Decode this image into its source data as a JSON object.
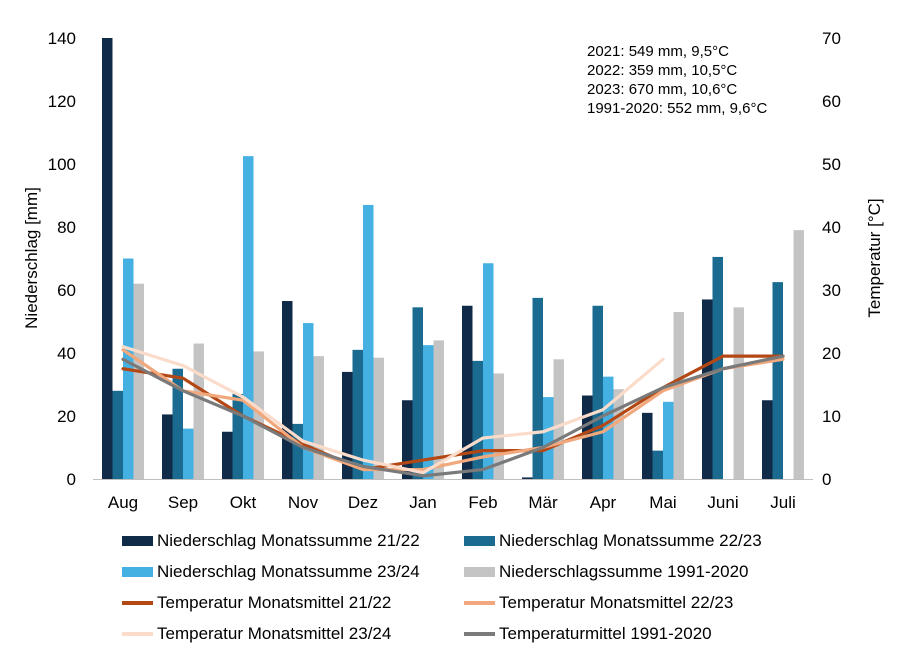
{
  "chart_data": {
    "type": "bar+line",
    "categories": [
      "Aug",
      "Sep",
      "Okt",
      "Nov",
      "Dez",
      "Jan",
      "Feb",
      "Mär",
      "Apr",
      "Mai",
      "Juni",
      "Juli"
    ],
    "ylabel": "Niederschlag [mm]",
    "y2label": "Temperatur [°C]",
    "ylim": [
      0,
      140
    ],
    "y2lim": [
      0,
      70
    ],
    "yticks": [
      "0",
      "20",
      "40",
      "60",
      "80",
      "100",
      "120",
      "140"
    ],
    "y2ticks": [
      "0",
      "10",
      "20",
      "30",
      "40",
      "50",
      "60",
      "70"
    ],
    "grid": false,
    "legend_position": "bottom",
    "annotations": [
      "2021: 549 mm, 9,5°C",
      "2022: 359 mm, 10,5°C",
      "2023: 670 mm, 10,6°C",
      "1991-2020: 552 mm, 9,6°C"
    ],
    "bar_series": [
      {
        "name": "Niederschlag Monatssumme 21/22",
        "color": "#0f2b48",
        "values": [
          140,
          20.5,
          15,
          56.5,
          34,
          25,
          55,
          0.5,
          26.5,
          21,
          57,
          25
        ]
      },
      {
        "name": "Niederschlag Monatssumme 22/23",
        "color": "#1b6a90",
        "values": [
          28,
          35,
          27,
          17.5,
          41,
          54.5,
          37.5,
          57.5,
          55,
          9,
          70.5,
          62.5
        ]
      },
      {
        "name": "Niederschlag Monatssumme 23/24",
        "color": "#45b1e2",
        "values": [
          70,
          16,
          102.5,
          49.5,
          87,
          42.5,
          68.5,
          26,
          32.5,
          24.5,
          null,
          null
        ]
      },
      {
        "name": "Niederschlagssumme 1991-2020",
        "color": "#c4c4c4",
        "values": [
          62,
          43,
          40.5,
          39,
          38.5,
          44,
          33.5,
          38,
          28.5,
          53,
          54.5,
          79
        ]
      }
    ],
    "line_series": [
      {
        "name": "Temperatur Monatsmittel 21/22",
        "color": "#b44814",
        "values": [
          17.5,
          16,
          10,
          5.5,
          1.5,
          3,
          4.5,
          4.5,
          8.5,
          14.5,
          19.5,
          19.5
        ]
      },
      {
        "name": "Temperatur Monatsmittel 22/23",
        "color": "#f0a87c",
        "values": [
          20.5,
          14,
          12.5,
          5,
          1.5,
          1.5,
          3.5,
          5,
          7.5,
          14,
          17.5,
          19
        ]
      },
      {
        "name": "Temperatur Monatsmittel 23/24",
        "color": "#fbdccb",
        "values": [
          21,
          18,
          13,
          6,
          3,
          1,
          6.5,
          7.5,
          11,
          19,
          null,
          null
        ]
      },
      {
        "name": "Temperaturmittel 1991-2020",
        "color": "#7a7a7a",
        "values": [
          19,
          14,
          10,
          5,
          2,
          0.5,
          1.5,
          5,
          10,
          14.5,
          17.5,
          19.5
        ]
      }
    ]
  }
}
